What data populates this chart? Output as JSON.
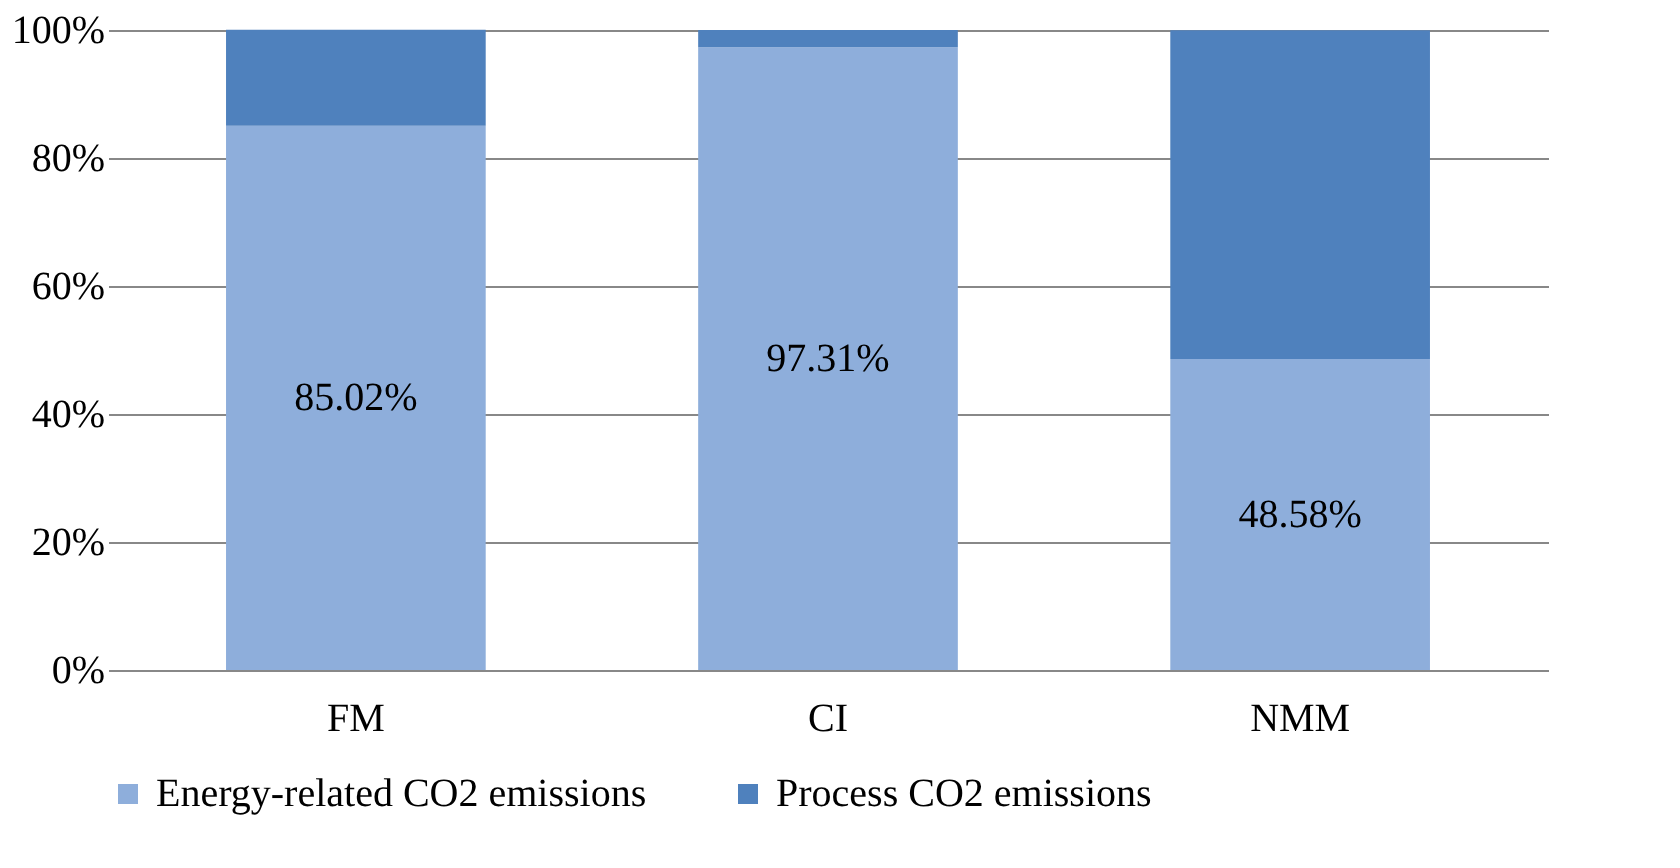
{
  "chart_data": {
    "type": "bar",
    "stacked": true,
    "categories": [
      "FM",
      "CI",
      "NMM"
    ],
    "series": [
      {
        "name": "Energy-related CO2 emissions",
        "color": "#8eaedb",
        "values": [
          85.02,
          97.31,
          48.58
        ],
        "value_labels": [
          "85.02%",
          "97.31%",
          "48.58%"
        ]
      },
      {
        "name": "Process CO2 emissions",
        "color": "#4f81bd",
        "values": [
          15,
          2.7,
          51.4
        ]
      }
    ],
    "ylim": [
      0,
      100
    ],
    "yticks": [
      {
        "value": 0,
        "label": "0%"
      },
      {
        "value": 20,
        "label": "20%"
      },
      {
        "value": 40,
        "label": "40%"
      },
      {
        "value": 60,
        "label": "60%"
      },
      {
        "value": 80,
        "label": "80%"
      },
      {
        "value": 100,
        "label": "100%"
      }
    ],
    "grid": "y",
    "legend": "bottom"
  }
}
